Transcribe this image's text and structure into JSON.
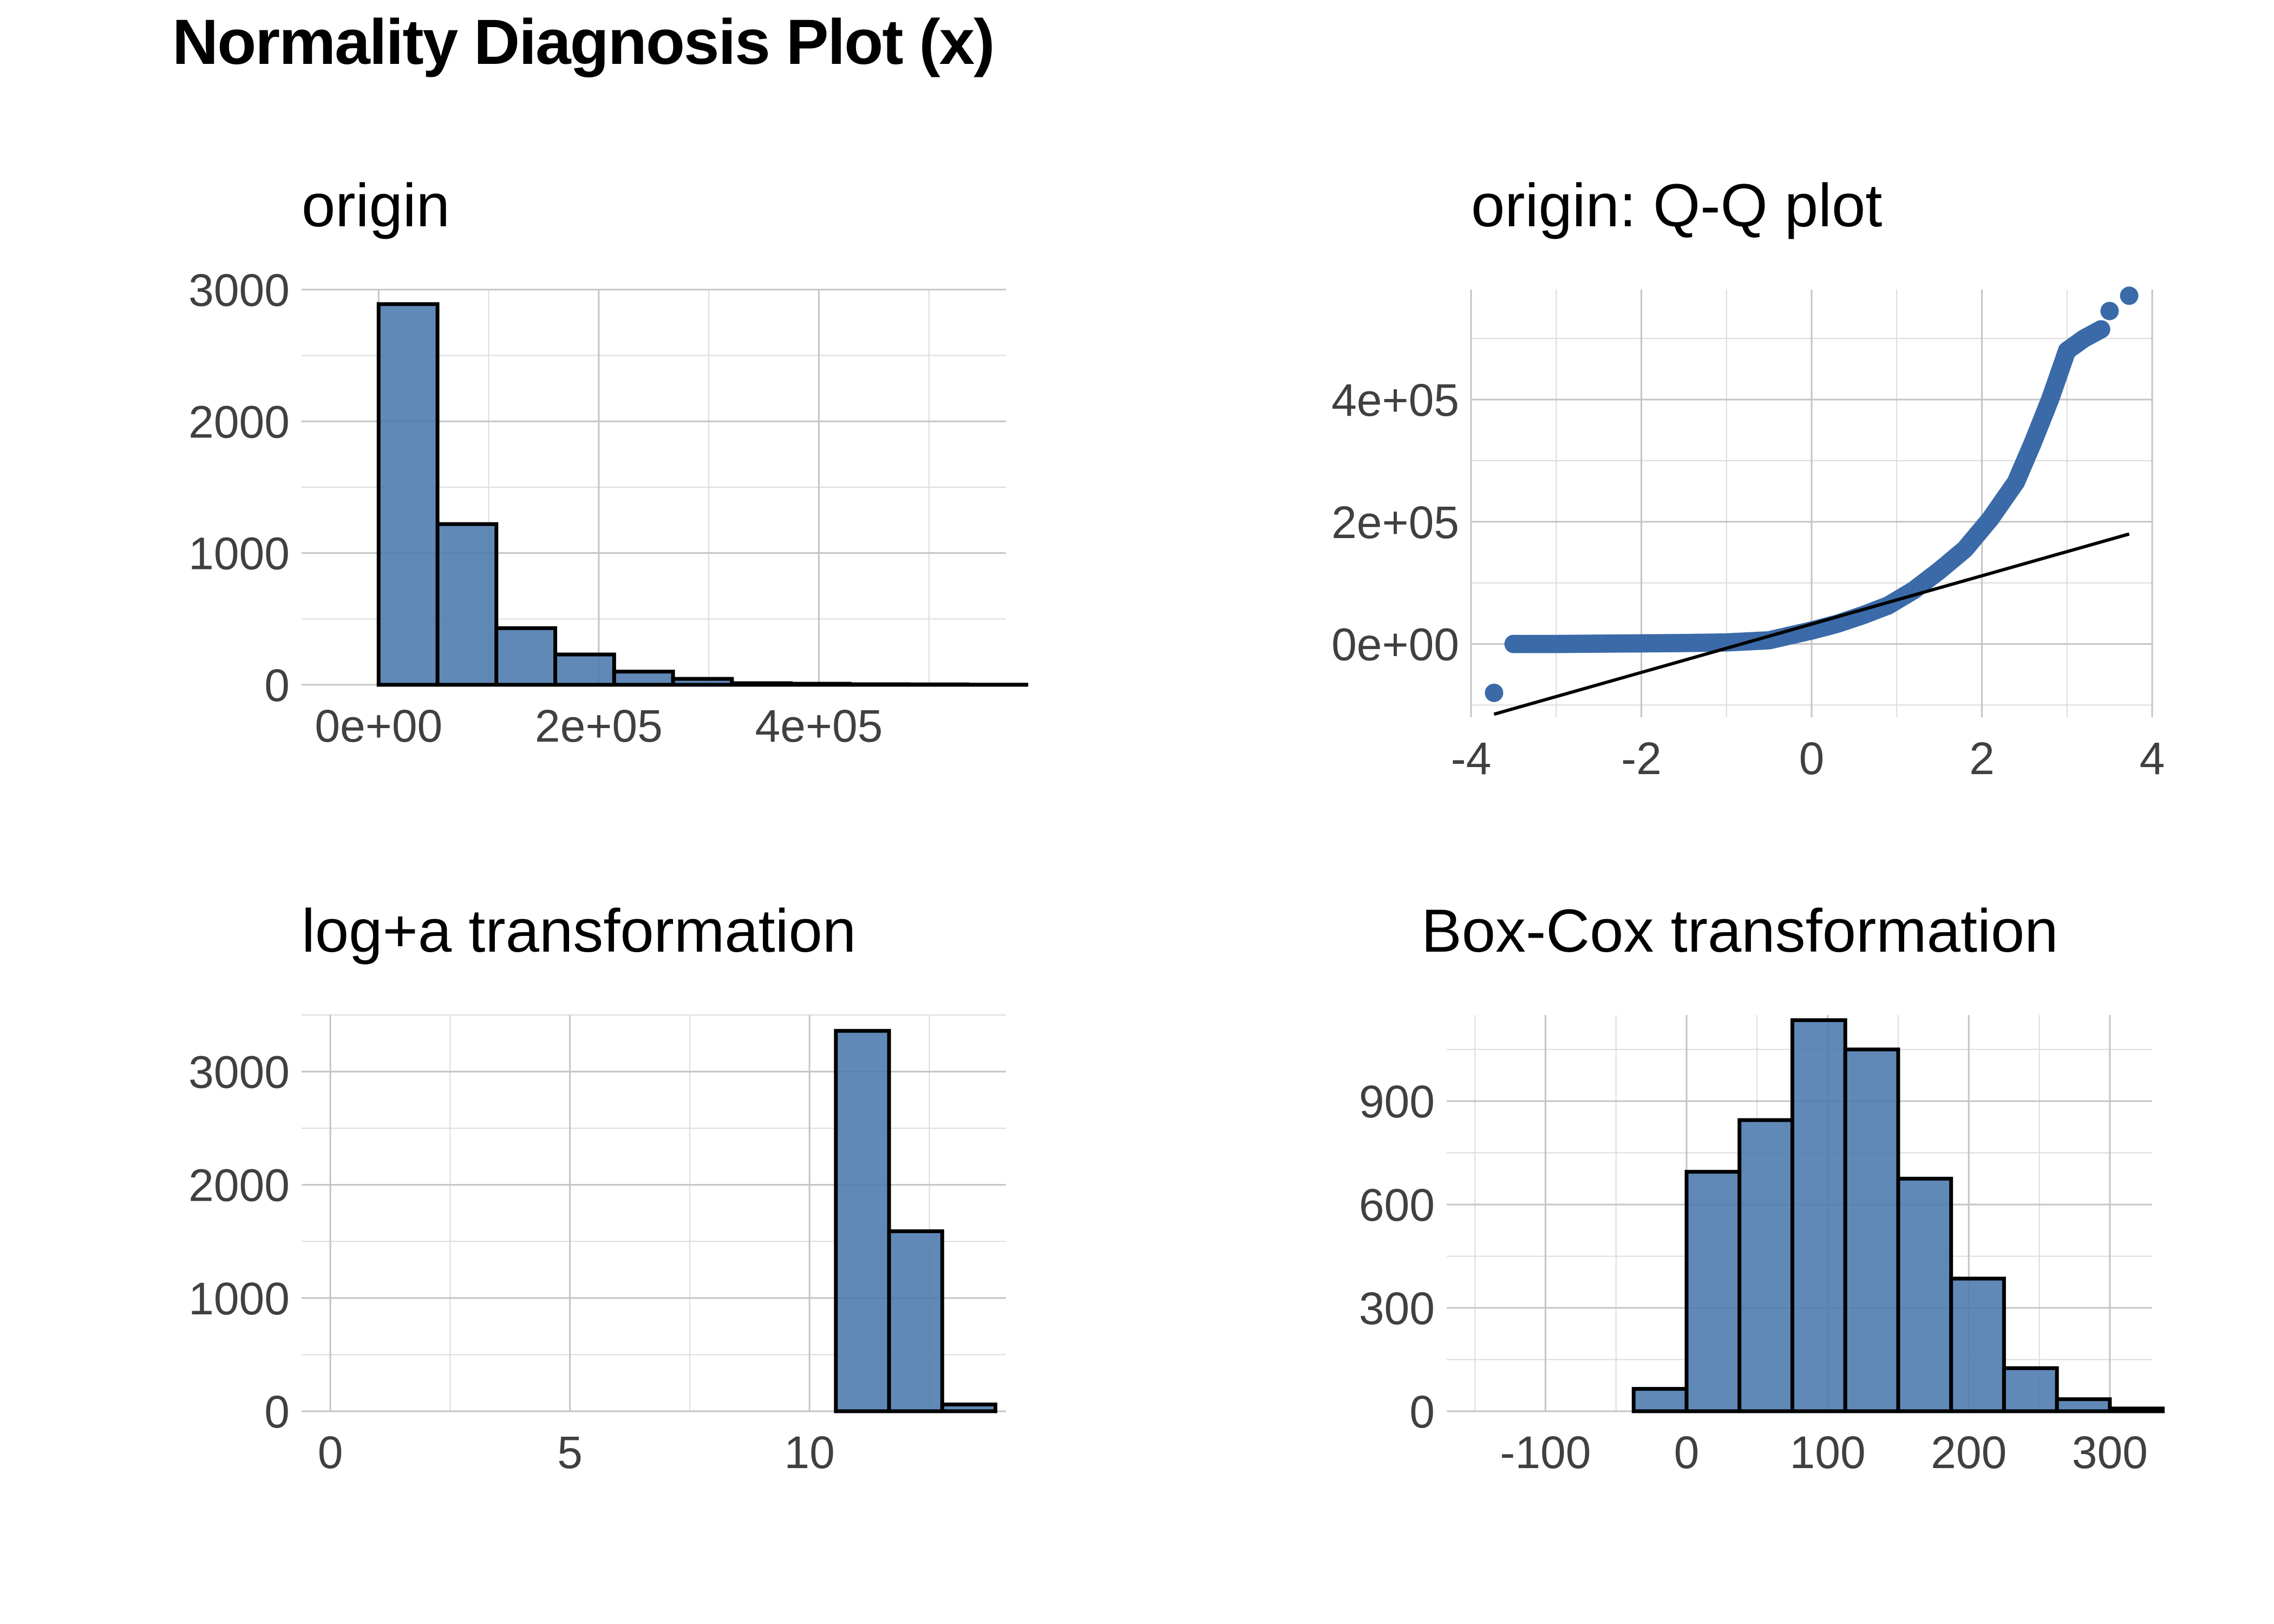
{
  "title": "Normality Diagnosis Plot (x)",
  "colors": {
    "bar_fill": "#4a78ac",
    "bar_outline": "#000000",
    "point": "#3b6aa8",
    "line": "#000000",
    "grid": "#c4c4c4"
  },
  "chart_data": [
    {
      "id": "origin",
      "type": "bar",
      "title": "origin",
      "xlabel": "",
      "ylabel": "",
      "grid": true,
      "xlim": [
        -70000,
        570000
      ],
      "ylim": [
        0,
        3000
      ],
      "xticks": [
        0,
        200000,
        400000
      ],
      "xtick_labels": [
        "0e+00",
        "2e+05",
        "4e+05"
      ],
      "yticks": [
        0,
        1000,
        2000,
        3000
      ],
      "ytick_labels": [
        "0",
        "1000",
        "2000",
        "3000"
      ],
      "bin_width": 53500,
      "bins": [
        {
          "x": -53500,
          "count": 0
        },
        {
          "x": 0,
          "count": 2890
        },
        {
          "x": 53500,
          "count": 1220
        },
        {
          "x": 107000,
          "count": 430
        },
        {
          "x": 160500,
          "count": 230
        },
        {
          "x": 214000,
          "count": 100
        },
        {
          "x": 267500,
          "count": 45
        },
        {
          "x": 321000,
          "count": 12
        },
        {
          "x": 374500,
          "count": 8
        },
        {
          "x": 428000,
          "count": 4
        },
        {
          "x": 481500,
          "count": 3
        },
        {
          "x": 535000,
          "count": 1
        }
      ]
    },
    {
      "id": "qq",
      "type": "scatter",
      "title": "origin: Q-Q plot",
      "xlabel": "",
      "ylabel": "",
      "grid": true,
      "xlim": [
        -4,
        4
      ],
      "ylim": [
        -120000,
        580000
      ],
      "xticks": [
        -4,
        -2,
        0,
        2,
        4
      ],
      "xtick_labels": [
        "-4",
        "-2",
        "0",
        "2",
        "4"
      ],
      "yticks": [
        0,
        200000,
        400000
      ],
      "ytick_labels": [
        "0e+00",
        "2e+05",
        "4e+05"
      ],
      "curve": [
        [
          -3.5,
          0
        ],
        [
          -3.0,
          0
        ],
        [
          -2.5,
          500
        ],
        [
          -2.0,
          1000
        ],
        [
          -1.5,
          1500
        ],
        [
          -1.0,
          2500
        ],
        [
          -0.5,
          6000
        ],
        [
          0.0,
          22000
        ],
        [
          0.3,
          33000
        ],
        [
          0.6,
          47000
        ],
        [
          0.9,
          63000
        ],
        [
          1.2,
          88000
        ],
        [
          1.5,
          120000
        ],
        [
          1.8,
          155000
        ],
        [
          2.1,
          205000
        ],
        [
          2.4,
          265000
        ],
        [
          2.6,
          330000
        ],
        [
          2.8,
          400000
        ],
        [
          3.0,
          480000
        ],
        [
          3.2,
          500000
        ],
        [
          3.4,
          515000
        ]
      ],
      "points": [
        [
          -3.73,
          -80000
        ],
        [
          -3.5,
          0
        ],
        [
          3.5,
          545000
        ],
        [
          3.73,
          570000
        ]
      ],
      "line": {
        "x": [
          -3.73,
          3.73
        ],
        "y": [
          -115000,
          180000
        ]
      }
    },
    {
      "id": "log",
      "type": "bar",
      "title": "log+a transformation",
      "xlabel": "",
      "ylabel": "",
      "grid": true,
      "xlim": [
        -0.6,
        14.1
      ],
      "ylim": [
        0,
        3500
      ],
      "xticks": [
        0,
        5,
        10
      ],
      "xtick_labels": [
        "0",
        "5",
        "10"
      ],
      "yticks": [
        0,
        1000,
        2000,
        3000
      ],
      "ytick_labels": [
        "0",
        "1000",
        "2000",
        "3000"
      ],
      "bin_width": 1.11,
      "bins": [
        {
          "x": -0.55,
          "count": 0
        },
        {
          "x": 0.56,
          "count": 0
        },
        {
          "x": 1.67,
          "count": 0
        },
        {
          "x": 2.78,
          "count": 0
        },
        {
          "x": 3.89,
          "count": 0
        },
        {
          "x": 5.0,
          "count": 0
        },
        {
          "x": 6.11,
          "count": 0
        },
        {
          "x": 7.22,
          "count": 0
        },
        {
          "x": 8.33,
          "count": 0
        },
        {
          "x": 9.44,
          "count": 0
        },
        {
          "x": 10.55,
          "count": 3360
        },
        {
          "x": 11.66,
          "count": 1590
        },
        {
          "x": 12.77,
          "count": 60
        }
      ]
    },
    {
      "id": "boxcox",
      "type": "bar",
      "title": "Box-Cox transformation",
      "xlabel": "",
      "ylabel": "",
      "grid": true,
      "xlim": [
        -170,
        330
      ],
      "ylim": [
        0,
        1150
      ],
      "xticks": [
        -100,
        0,
        100,
        200,
        300
      ],
      "xtick_labels": [
        "-100",
        "0",
        "100",
        "200",
        "300"
      ],
      "yticks": [
        0,
        300,
        600,
        900
      ],
      "ytick_labels": [
        "0",
        "300",
        "600",
        "900"
      ],
      "bin_width": 37.5,
      "bins": [
        {
          "x": -150,
          "count": 0
        },
        {
          "x": -112.5,
          "count": 0
        },
        {
          "x": -75,
          "count": 0
        },
        {
          "x": -37.5,
          "count": 65
        },
        {
          "x": 0,
          "count": 695
        },
        {
          "x": 37.5,
          "count": 845
        },
        {
          "x": 75,
          "count": 1135
        },
        {
          "x": 112.5,
          "count": 1050
        },
        {
          "x": 150,
          "count": 675
        },
        {
          "x": 187.5,
          "count": 385
        },
        {
          "x": 225,
          "count": 125
        },
        {
          "x": 262.5,
          "count": 35
        },
        {
          "x": 300,
          "count": 8
        }
      ]
    }
  ]
}
